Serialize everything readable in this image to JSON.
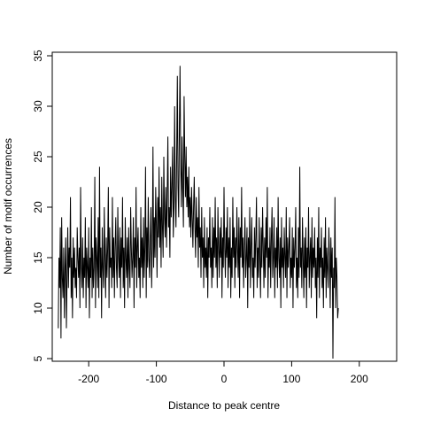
{
  "chart_data": {
    "type": "line",
    "title": "",
    "xlabel": "Distance to peak centre",
    "ylabel": "Number of motif occurrences",
    "xlim": [
      -250,
      250
    ],
    "ylim": [
      5,
      35
    ],
    "x_ticks": [
      -200,
      -100,
      0,
      100,
      200
    ],
    "x_tick_labels": [
      "-200",
      "-100",
      "0",
      "100",
      "200"
    ],
    "y_ticks": [
      5,
      10,
      15,
      20,
      25,
      30,
      35
    ],
    "y_tick_labels": [
      "5",
      "10",
      "15",
      "20",
      "25",
      "30",
      "35"
    ],
    "grid": false,
    "line_color": "#000000",
    "series": [
      {
        "x_start": -245,
        "x_step": 1,
        "values": [
          8,
          15,
          12,
          18,
          7,
          19,
          13,
          11,
          16,
          9,
          14,
          17,
          8,
          13,
          18,
          12,
          16,
          14,
          21,
          11,
          15,
          9,
          17,
          13,
          16,
          12,
          14,
          11,
          18,
          15,
          13,
          16,
          10,
          22,
          14,
          12,
          17,
          11,
          15,
          13,
          19,
          10,
          16,
          14,
          12,
          18,
          9,
          15,
          13,
          20,
          11,
          16,
          12,
          14,
          23,
          10,
          17,
          15,
          12,
          19,
          11,
          24,
          13,
          16,
          9,
          18,
          14,
          12,
          20,
          15,
          11,
          17,
          13,
          16,
          22,
          10,
          18,
          14,
          15,
          12,
          21,
          13,
          17,
          11,
          16,
          19,
          14,
          12,
          20,
          15,
          13,
          18,
          11,
          17,
          14,
          21,
          12,
          16,
          10,
          19,
          15,
          13,
          17,
          11,
          18,
          14,
          12,
          20,
          16,
          13,
          15,
          19,
          10,
          17,
          14,
          22,
          12,
          16,
          18,
          13,
          15,
          11,
          20,
          14,
          17,
          12,
          19,
          13,
          16,
          24,
          11,
          18,
          14,
          21,
          15,
          13,
          17,
          20,
          12,
          16,
          26,
          14,
          19,
          15,
          22,
          18,
          13,
          21,
          17,
          24,
          16,
          20,
          14,
          23,
          18,
          15,
          25,
          19,
          17,
          22,
          16,
          21,
          27,
          18,
          20,
          15,
          24,
          19,
          22,
          26,
          17,
          20,
          30,
          21,
          18,
          25,
          33,
          22,
          19,
          28,
          34,
          24,
          20,
          27,
          22,
          18,
          31,
          25,
          21,
          26,
          20,
          23,
          19,
          24,
          18,
          21,
          17,
          22,
          19,
          16,
          20,
          23,
          18,
          15,
          21,
          17,
          19,
          14,
          22,
          16,
          18,
          13,
          20,
          15,
          17,
          12,
          19,
          14,
          16,
          13,
          18,
          11,
          17,
          15,
          20,
          14,
          16,
          12,
          19,
          13,
          18,
          15,
          21,
          14,
          17,
          12,
          20,
          16,
          13,
          18,
          15,
          19,
          11,
          17,
          14,
          22,
          16,
          13,
          18,
          15,
          20,
          12,
          17,
          14,
          19,
          11,
          16,
          13,
          21,
          15,
          18,
          12,
          17,
          14,
          20,
          16,
          13,
          19,
          11,
          18,
          15,
          22,
          14,
          17,
          12,
          16,
          19,
          13,
          15,
          18,
          10,
          17,
          14,
          20,
          12,
          16,
          19,
          13,
          15,
          11,
          18,
          14,
          17,
          21,
          12,
          16,
          13,
          19,
          15,
          11,
          18,
          14,
          20,
          16,
          12,
          17,
          13,
          19,
          15,
          22,
          11,
          16,
          14,
          18,
          12,
          17,
          20,
          13,
          15,
          19,
          11,
          16,
          14,
          18,
          12,
          21,
          15,
          13,
          17,
          10,
          19,
          14,
          16,
          12,
          18,
          15,
          13,
          20,
          11,
          17,
          14,
          16,
          19,
          12,
          15,
          13,
          18,
          10,
          17,
          14,
          16,
          20,
          12,
          15,
          11,
          18,
          13,
          24,
          14,
          16,
          12,
          19,
          15,
          11,
          17,
          13,
          18,
          10,
          16,
          14,
          20,
          12,
          15,
          17,
          11,
          19,
          13,
          16,
          14,
          18,
          12,
          15,
          9,
          17,
          13,
          20,
          11,
          16,
          14,
          18,
          12,
          15,
          10,
          17,
          13,
          19,
          11,
          16,
          14,
          12,
          18,
          15,
          10,
          17,
          13,
          16,
          5,
          14,
          12,
          21,
          10,
          15,
          13,
          9,
          10
        ]
      }
    ]
  }
}
